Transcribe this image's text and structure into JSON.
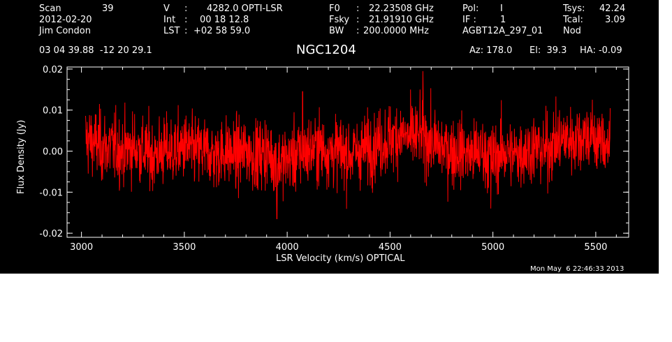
{
  "header": {
    "scan_label": "Scan",
    "scan_value": "39",
    "date": "2012-02-20",
    "observer": "Jim Condon",
    "v_label": "V",
    "v_sep": ":",
    "v_value": "4282.0 OPTI-LSR",
    "int_label": "Int",
    "int_sep": ":",
    "int_value": "00 18 12.8",
    "lst_label": "LST",
    "lst_sep": ":",
    "lst_value": "+02 58 59.0",
    "f0_label": "F0",
    "f0_sep": ":",
    "f0_value": "22.23508 GHz",
    "fsky_label": "Fsky",
    "fsky_sep": ":",
    "fsky_value": "21.91910 GHz",
    "bw_label": "BW",
    "bw_sep": ":",
    "bw_value": "200.0000 MHz",
    "pol_label": "Pol:",
    "pol_value": "I",
    "if_label": "IF :",
    "if_value": "1",
    "project": "AGBT12A_297_01",
    "tsys_label": "Tsys:",
    "tsys_value": "42.24",
    "tcal_label": "Tcal:",
    "tcal_value": "3.09",
    "proc": "Nod",
    "coords": "03 04 39.88  -12 20 29.1",
    "source": "NGC1204",
    "az": "Az: 178.0",
    "el": "El:  39.3",
    "ha": "HA: -0.09",
    "timestamp": "Mon May  6 22:46:33 2013"
  },
  "colors": {
    "background": "#000000",
    "foreground": "#ffffff",
    "trace": "#ff0000"
  },
  "chart_data": {
    "type": "line",
    "xlabel": "LSR Velocity (km/s) OPTICAL",
    "ylabel": "Flux Density (Jy)",
    "xlim": [
      2930,
      5660
    ],
    "ylim": [
      -0.021,
      0.0205
    ],
    "xticks": [
      3000,
      3500,
      4000,
      4500,
      5000,
      5500
    ],
    "xtick_labels": [
      "3000",
      "3500",
      "4000",
      "4500",
      "5000",
      "5500"
    ],
    "yticks": [
      0.02,
      0.01,
      0.0,
      -0.01,
      -0.02
    ],
    "ytick_labels": [
      "0.02",
      "0.01",
      "0.00",
      "-0.01",
      "-0.02"
    ],
    "grid": false,
    "series": [
      {
        "color": "#ff0000",
        "description": "noisy spectrum, approx. ±0.007 Jy rms, spanning 3020–5570 km/s",
        "x": [
          3020,
          3060,
          3100,
          3150,
          3200,
          3250,
          3300,
          3350,
          3400,
          3450,
          3500,
          3550,
          3600,
          3650,
          3700,
          3750,
          3800,
          3850,
          3900,
          3950,
          4000,
          4050,
          4100,
          4150,
          4200,
          4250,
          4300,
          4350,
          4400,
          4450,
          4500,
          4550,
          4600,
          4650,
          4700,
          4750,
          4800,
          4850,
          4900,
          4950,
          5000,
          5050,
          5100,
          5150,
          5200,
          5250,
          5300,
          5350,
          5400,
          5450,
          5500,
          5550,
          5570
        ],
        "y": [
          0.003,
          0.002,
          0.001,
          0.001,
          0.0,
          0.001,
          0.0,
          -0.001,
          0.0,
          0.0,
          0.001,
          0.0,
          0.0,
          -0.001,
          0.0,
          -0.001,
          0.0,
          -0.001,
          0.0,
          -0.003,
          -0.002,
          -0.001,
          0.0,
          0.001,
          0.0,
          0.0,
          -0.001,
          0.0,
          0.001,
          0.002,
          0.003,
          0.004,
          0.003,
          0.004,
          0.002,
          0.001,
          0.0,
          0.0,
          -0.001,
          0.0,
          -0.002,
          0.0,
          -0.001,
          0.0,
          0.001,
          0.0,
          0.002,
          0.003,
          0.003,
          0.004,
          0.003,
          0.002,
          0.001
        ],
        "peaks": [
          {
            "x": 4660,
            "y": 0.0195
          },
          {
            "x": 4075,
            "y": 0.0145
          },
          {
            "x": 3950,
            "y": -0.0165
          },
          {
            "x": 4990,
            "y": -0.014
          }
        ]
      }
    ]
  }
}
